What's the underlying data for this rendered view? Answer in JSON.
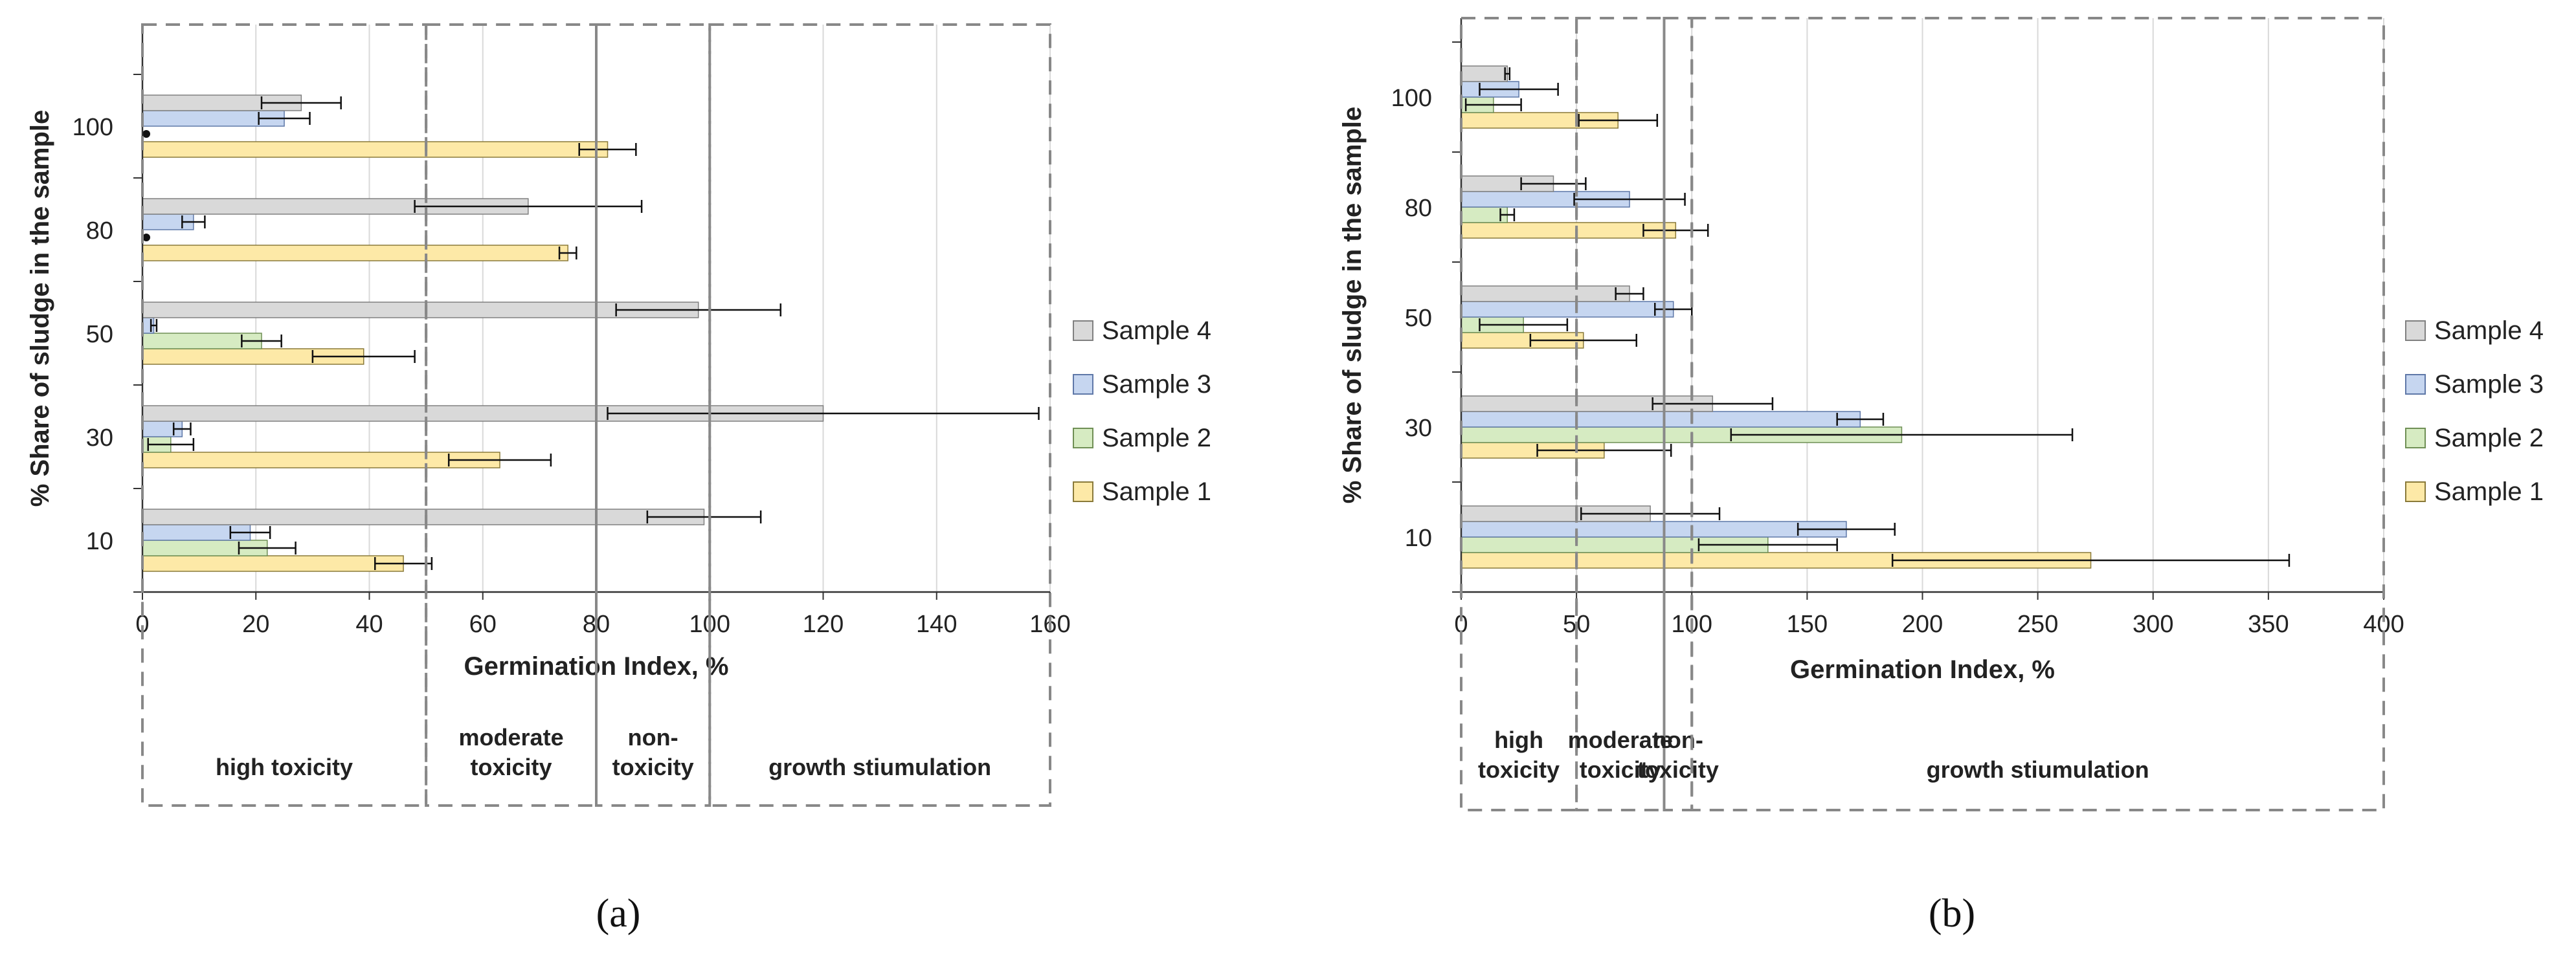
{
  "colors": {
    "series": [
      "#fde9a7",
      "#d6ebc2",
      "#c6d6f0",
      "#d9d9d9"
    ],
    "series_stroke": [
      "#8a7a3a",
      "#6f8f55",
      "#5f78a8",
      "#808080"
    ],
    "dash": "#888888",
    "grid": "#d9d9d9"
  },
  "chart_data": [
    {
      "type": "bar",
      "orientation": "horizontal",
      "panel_label": "(a)",
      "title": "",
      "xlabel": "Germination Index, %",
      "ylabel": "% Share of sludge in the sample",
      "xlim": [
        0,
        160
      ],
      "xticks": [
        0,
        20,
        40,
        60,
        80,
        100,
        120,
        140,
        160
      ],
      "x_tick_labels": [
        "0",
        "20",
        "40",
        "60",
        "80",
        "100",
        "120",
        "140",
        "160"
      ],
      "categories": [
        "10",
        "30",
        "50",
        "80",
        "100"
      ],
      "series": [
        {
          "name": "Sample 1",
          "values": [
            46,
            63,
            39,
            75,
            82
          ],
          "errors": [
            5,
            9,
            9,
            1.5,
            5
          ]
        },
        {
          "name": "Sample 2",
          "values": [
            22,
            5,
            21,
            0,
            0
          ],
          "errors": [
            5,
            4,
            3.5,
            0,
            0
          ]
        },
        {
          "name": "Sample 3",
          "values": [
            19,
            7,
            2,
            9,
            25
          ],
          "errors": [
            3.5,
            1.5,
            0.5,
            2,
            4.5
          ]
        },
        {
          "name": "Sample 4",
          "values": [
            99,
            120,
            98,
            68,
            28
          ],
          "errors": [
            10,
            38,
            14.5,
            20,
            7
          ]
        }
      ],
      "zones": [
        {
          "label_lines": [
            "high toxicity"
          ],
          "range": [
            0,
            50
          ]
        },
        {
          "label_lines": [
            "moderate",
            "toxicity"
          ],
          "range": [
            50,
            80
          ]
        },
        {
          "label_lines": [
            "non-",
            "toxicity"
          ],
          "range": [
            80,
            100
          ]
        },
        {
          "label_lines": [
            "growth stiumulation"
          ],
          "range": [
            100,
            160
          ]
        }
      ],
      "legend": [
        "Sample 4",
        "Sample 3",
        "Sample 2",
        "Sample 1"
      ],
      "grid": true
    },
    {
      "type": "bar",
      "orientation": "horizontal",
      "panel_label": "(b)",
      "title": "",
      "xlabel": "Germination Index, %",
      "ylabel": "% Share of sludge in the sample",
      "xlim": [
        0,
        400
      ],
      "xticks": [
        0,
        50,
        100,
        150,
        200,
        250,
        300,
        350,
        400
      ],
      "x_tick_labels": [
        "0",
        "50",
        "100",
        "150",
        "200",
        "250",
        "300",
        "350",
        "400"
      ],
      "categories": [
        "10",
        "30",
        "50",
        "80",
        "100"
      ],
      "series": [
        {
          "name": "Sample 1",
          "values": [
            273,
            62,
            53,
            93,
            68
          ],
          "errors": [
            86,
            29,
            23,
            14,
            17
          ]
        },
        {
          "name": "Sample 2",
          "values": [
            133,
            191,
            27,
            20,
            14
          ],
          "errors": [
            30,
            74,
            19,
            3,
            12
          ]
        },
        {
          "name": "Sample 3",
          "values": [
            167,
            173,
            92,
            73,
            25
          ],
          "errors": [
            21,
            10,
            8,
            24,
            17
          ]
        },
        {
          "name": "Sample 4",
          "values": [
            82,
            109,
            73,
            40,
            20
          ],
          "errors": [
            30,
            26,
            6,
            14,
            1
          ]
        }
      ],
      "zones": [
        {
          "label_lines": [
            "high",
            "toxicity"
          ],
          "range": [
            0,
            50
          ]
        },
        {
          "label_lines": [
            "moderate",
            "toxicity"
          ],
          "range": [
            50,
            88
          ]
        },
        {
          "label_lines": [
            "non-",
            "toxicity"
          ],
          "range": [
            88,
            100
          ]
        },
        {
          "label_lines": [
            "growth stiumulation"
          ],
          "range": [
            100,
            400
          ]
        }
      ],
      "legend": [
        "Sample 4",
        "Sample 3",
        "Sample 2",
        "Sample 1"
      ],
      "grid": true
    }
  ]
}
